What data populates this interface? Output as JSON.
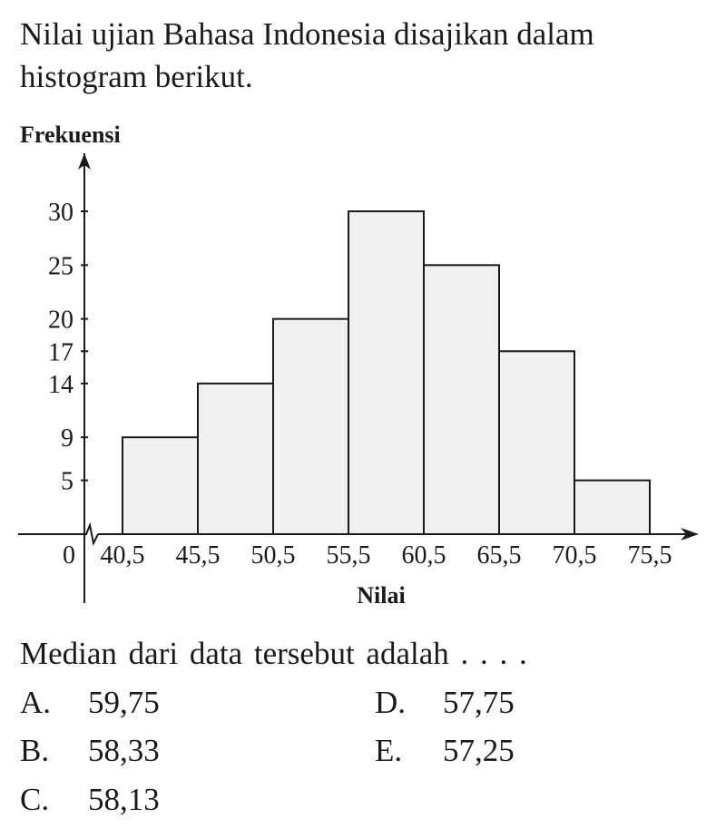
{
  "question": {
    "text": "Nilai ujian Bahasa Indonesia disajikan dalam histogram berikut."
  },
  "chart_data": {
    "type": "bar",
    "ylabel": "Frekuensi",
    "xlabel": "Nilai",
    "origin_label": "0",
    "boundaries": [
      "40,5",
      "45,5",
      "50,5",
      "55,5",
      "60,5",
      "65,5",
      "70,5",
      "75,5"
    ],
    "boundary_values": [
      40.5,
      45.5,
      50.5,
      55.5,
      60.5,
      65.5,
      70.5,
      75.5
    ],
    "values": [
      9,
      14,
      20,
      30,
      25,
      17,
      5
    ],
    "yticks": [
      5,
      9,
      14,
      17,
      20,
      25,
      30
    ],
    "ylim": [
      0,
      30
    ],
    "grid": false,
    "bar_color": "#f0f0f0",
    "axis_color": "#1a1a1a"
  },
  "sub_question": {
    "text": "Median dari data tersebut adalah . . . ."
  },
  "options": [
    {
      "letter": "A.",
      "value": "59,75"
    },
    {
      "letter": "B.",
      "value": "58,33"
    },
    {
      "letter": "C.",
      "value": "58,13"
    },
    {
      "letter": "D.",
      "value": "57,75"
    },
    {
      "letter": "E.",
      "value": "57,25"
    }
  ]
}
